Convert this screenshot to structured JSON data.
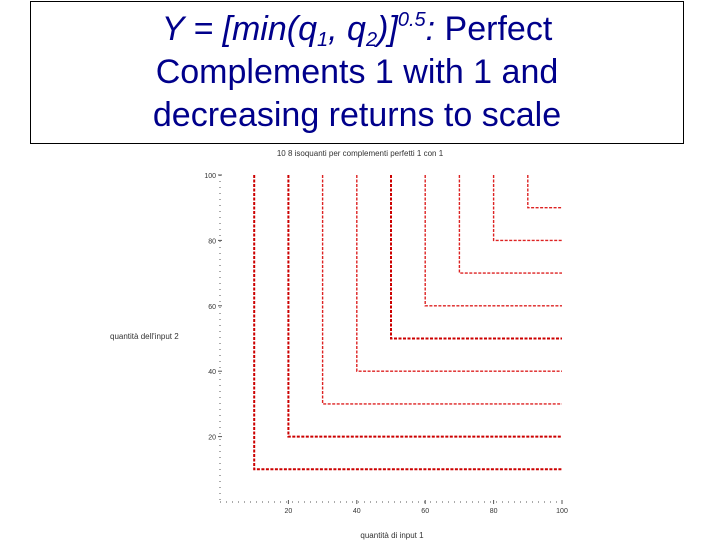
{
  "title": {
    "eq_y": "Y = [min(q",
    "eq_sub1": "1",
    "eq_mid": ", q",
    "eq_sub2": "2",
    "eq_close": ")]",
    "eq_exp": "0.5",
    "eq_colon": ":",
    "rest": " Perfect",
    "line2": "Complements 1 with 1 and",
    "line3": "decreasing returns to scale"
  },
  "chart_data": {
    "type": "line",
    "title": "10 8 isoquanti per complementi perfetti 1 con 1",
    "xlabel": "quantità di input 1",
    "ylabel": "quantità dell'input 2",
    "xlim": [
      0,
      100
    ],
    "ylim": [
      0,
      100
    ],
    "xticks": [
      20,
      40,
      60,
      80,
      100
    ],
    "yticks": [
      20,
      40,
      60,
      80,
      100
    ],
    "xtick_labels": [
      "20",
      "40",
      "60",
      "80",
      "100"
    ],
    "ytick_labels": [
      "20",
      "40",
      "60",
      "80",
      "100"
    ],
    "line_style": "dashed",
    "corner_x": [
      10,
      20,
      30,
      40,
      50,
      60,
      70,
      80,
      90
    ],
    "colors": [
      "#cc0000",
      "#cc0000",
      "#dd2222",
      "#dd2222",
      "#cc0000",
      "#dd2222",
      "#dd2222",
      "#dd2222",
      "#dd2222"
    ]
  }
}
